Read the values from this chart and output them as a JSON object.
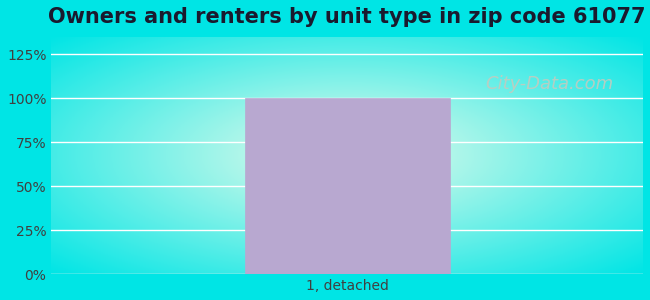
{
  "title": "Owners and renters by unit type in zip code 61077",
  "categories": [
    "1, detached"
  ],
  "values": [
    100
  ],
  "bar_color": "#b8a8d0",
  "yticks": [
    0,
    25,
    50,
    75,
    100,
    125
  ],
  "ytick_labels": [
    "0%",
    "25%",
    "50%",
    "75%",
    "100%",
    "125%"
  ],
  "ylim_max": 135,
  "title_fontsize": 15,
  "tick_fontsize": 10,
  "xlabel_fontsize": 10,
  "bg_outer_color": "#00e5e5",
  "watermark_text": "City-Data.com",
  "watermark_color": "#c0ccc0",
  "watermark_fontsize": 13,
  "bar_width": 0.45,
  "xlim": [
    -0.65,
    0.65
  ]
}
